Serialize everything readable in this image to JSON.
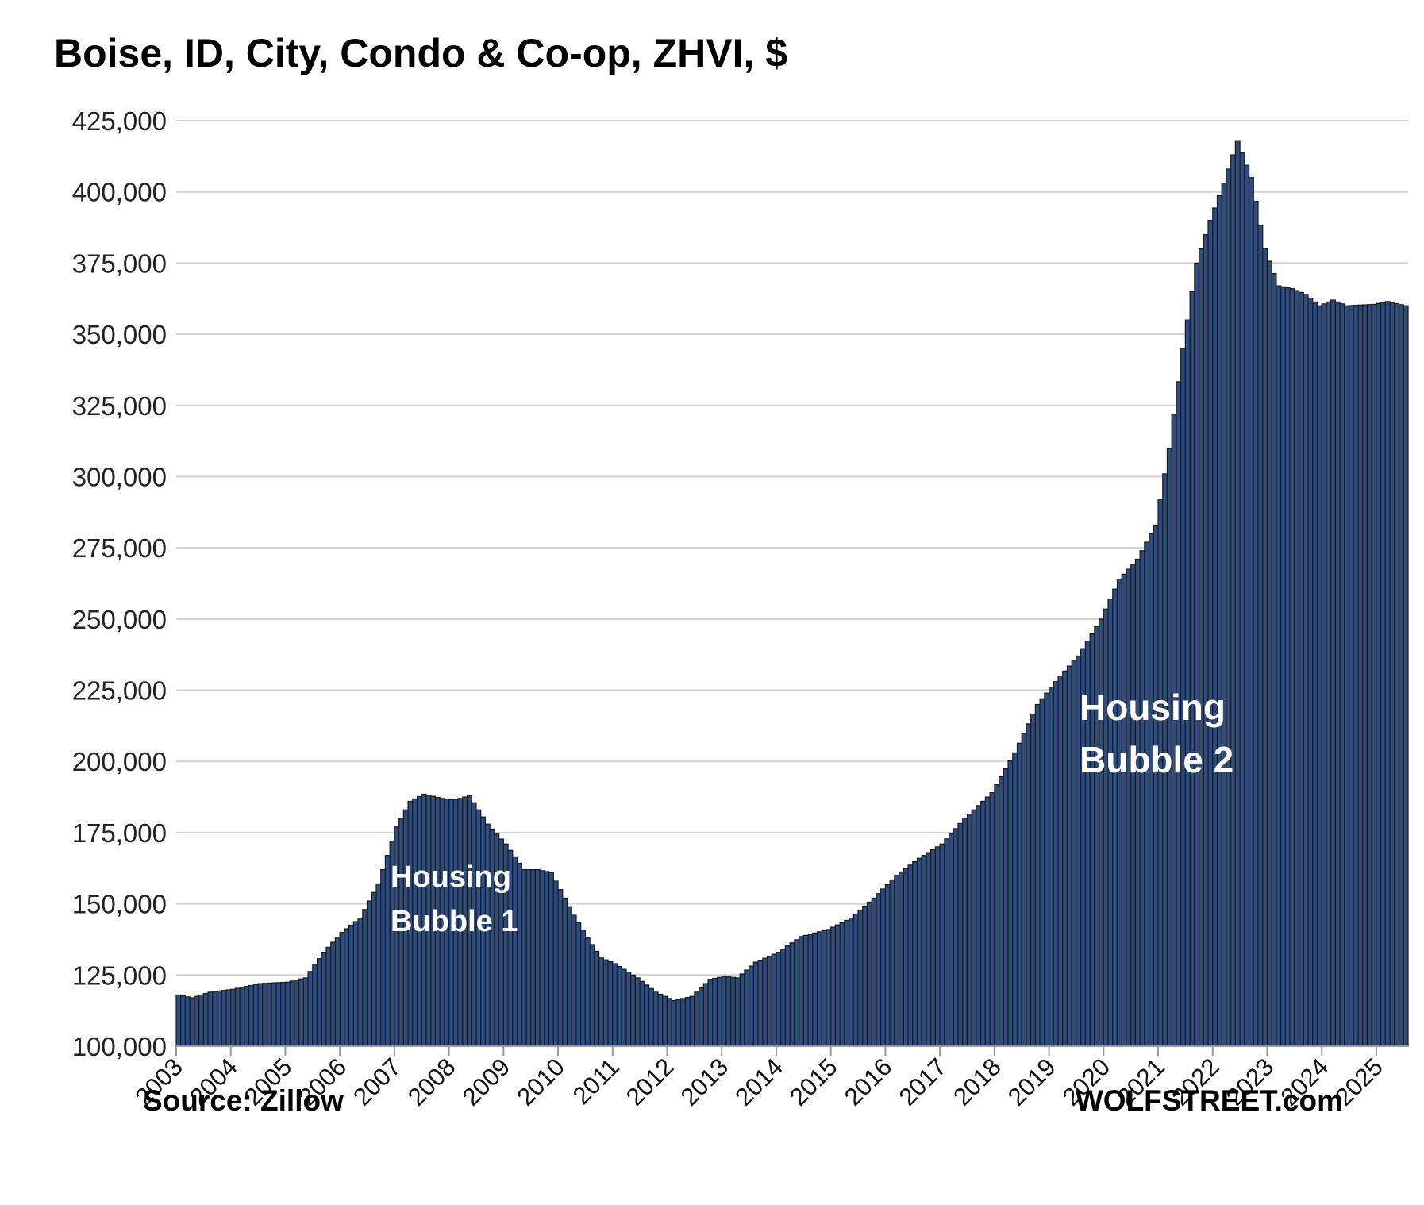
{
  "chart_data": {
    "type": "bar",
    "title": "Boise, ID, City, Condo & Co-op, ZHVI, $",
    "xlabel": "",
    "ylabel": "",
    "ylim": [
      100000,
      425000
    ],
    "yticks": [
      100000,
      125000,
      150000,
      175000,
      200000,
      225000,
      250000,
      275000,
      300000,
      325000,
      350000,
      375000,
      400000,
      425000
    ],
    "ytick_labels": [
      "100,000",
      "125,000",
      "150,000",
      "175,000",
      "200,000",
      "225,000",
      "250,000",
      "275,000",
      "300,000",
      "325,000",
      "350,000",
      "375,000",
      "400,000",
      "425,000"
    ],
    "xtick_labels": [
      "2003",
      "2004",
      "2005",
      "2006",
      "2007",
      "2008",
      "2009",
      "2010",
      "2011",
      "2012",
      "2013",
      "2014",
      "2015",
      "2016",
      "2017",
      "2018",
      "2019",
      "2020",
      "2021",
      "2022",
      "2023",
      "2024",
      "2025"
    ],
    "x_start": "2003-01",
    "frequency": "monthly",
    "grid": true,
    "bar_color": "#2E4C7E",
    "bar_edge_color": "#1a1a1a",
    "anchors": [
      [
        "2003-01",
        118000
      ],
      [
        "2003-04",
        117000
      ],
      [
        "2003-08",
        119000
      ],
      [
        "2004-01",
        120000
      ],
      [
        "2004-07",
        122000
      ],
      [
        "2005-01",
        122500
      ],
      [
        "2005-05",
        124000
      ],
      [
        "2005-09",
        133000
      ],
      [
        "2006-01",
        140000
      ],
      [
        "2006-05",
        145000
      ],
      [
        "2006-09",
        157000
      ],
      [
        "2007-01",
        177000
      ],
      [
        "2007-04",
        186000
      ],
      [
        "2007-07",
        188500
      ],
      [
        "2007-11",
        187000
      ],
      [
        "2008-02",
        186500
      ],
      [
        "2008-05",
        188000
      ],
      [
        "2008-09",
        178000
      ],
      [
        "2009-01",
        171000
      ],
      [
        "2009-05",
        162000
      ],
      [
        "2009-08",
        162000
      ],
      [
        "2009-11",
        161000
      ],
      [
        "2010-01",
        155000
      ],
      [
        "2010-04",
        146000
      ],
      [
        "2010-07",
        138000
      ],
      [
        "2010-10",
        131000
      ],
      [
        "2011-01",
        129000
      ],
      [
        "2011-06",
        124000
      ],
      [
        "2011-10",
        119000
      ],
      [
        "2012-02",
        116000
      ],
      [
        "2012-06",
        117500
      ],
      [
        "2012-10",
        123500
      ],
      [
        "2013-01",
        124500
      ],
      [
        "2013-04",
        124000
      ],
      [
        "2013-08",
        129500
      ],
      [
        "2014-01",
        133000
      ],
      [
        "2014-06",
        138500
      ],
      [
        "2014-12",
        141000
      ],
      [
        "2015-05",
        145000
      ],
      [
        "2015-10",
        152000
      ],
      [
        "2016-03",
        160000
      ],
      [
        "2016-08",
        166000
      ],
      [
        "2017-01",
        171000
      ],
      [
        "2017-06",
        180000
      ],
      [
        "2017-12",
        189000
      ],
      [
        "2018-05",
        203000
      ],
      [
        "2018-10",
        220000
      ],
      [
        "2019-03",
        230000
      ],
      [
        "2019-07",
        237000
      ],
      [
        "2019-12",
        250000
      ],
      [
        "2020-04",
        264000
      ],
      [
        "2020-08",
        271000
      ],
      [
        "2020-12",
        283000
      ],
      [
        "2021-03",
        310000
      ],
      [
        "2021-06",
        345000
      ],
      [
        "2021-09",
        375000
      ],
      [
        "2021-12",
        390000
      ],
      [
        "2022-03",
        403000
      ],
      [
        "2022-06",
        418000
      ],
      [
        "2022-09",
        405000
      ],
      [
        "2022-12",
        380000
      ],
      [
        "2023-03",
        367000
      ],
      [
        "2023-06",
        366000
      ],
      [
        "2023-09",
        364000
      ],
      [
        "2023-12",
        360000
      ],
      [
        "2024-03",
        362000
      ],
      [
        "2024-06",
        360000
      ],
      [
        "2024-12",
        360500
      ],
      [
        "2025-03",
        361500
      ],
      [
        "2025-07",
        360000
      ]
    ],
    "annotations": [
      {
        "lines": [
          "Housing",
          "Bubble 1"
        ]
      },
      {
        "lines": [
          "Housing",
          "Bubble 2"
        ]
      }
    ]
  },
  "footer": {
    "source": "Source: Zillow",
    "brand": "WOLFSTREET.com"
  }
}
